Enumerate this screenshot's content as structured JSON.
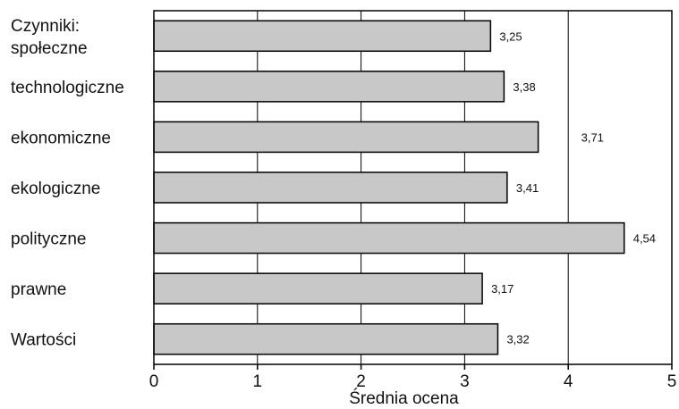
{
  "chart_data": {
    "type": "bar",
    "orientation": "horizontal",
    "categories": [
      "Czynniki:\nspołeczne",
      "technologiczne",
      "ekonomiczne",
      "ekologiczne",
      "polityczne",
      "prawne",
      "Wartości"
    ],
    "values": [
      3.25,
      3.38,
      3.71,
      3.41,
      4.54,
      3.17,
      3.32
    ],
    "value_labels": [
      "3,25",
      "3,38",
      "3,71",
      "3,41",
      "4,54",
      "3,17",
      "3,32"
    ],
    "xlabel": "Średnia ocena",
    "ylabel": "",
    "xlim": [
      0,
      5
    ],
    "xticks": [
      0,
      1,
      2,
      3,
      4,
      5
    ],
    "grid": "vertical",
    "legend": "none",
    "colors": {
      "bar_fill": "#c8c8c8",
      "bar_stroke": "#000000",
      "grid": "#000000"
    }
  }
}
